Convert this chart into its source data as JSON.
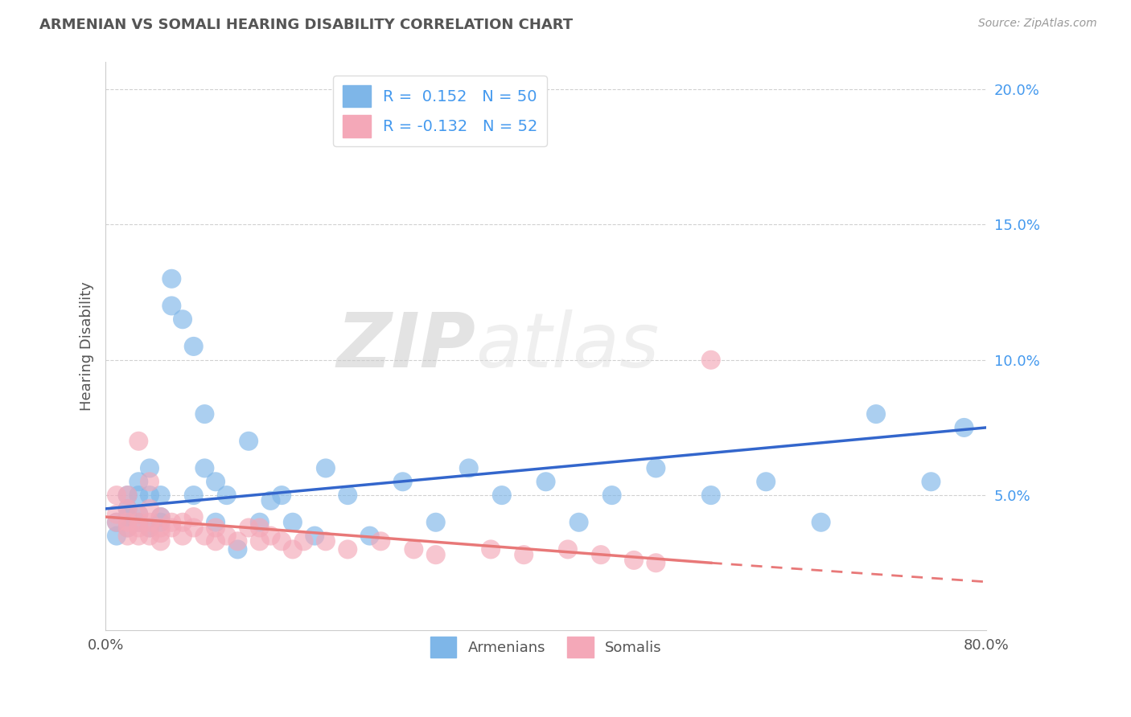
{
  "title": "ARMENIAN VS SOMALI HEARING DISABILITY CORRELATION CHART",
  "source": "Source: ZipAtlas.com",
  "ylabel": "Hearing Disability",
  "xlabel": "",
  "xmin": 0.0,
  "xmax": 0.8,
  "ymin": 0.0,
  "ymax": 0.21,
  "yticks": [
    0.05,
    0.1,
    0.15,
    0.2
  ],
  "ytick_labels": [
    "5.0%",
    "10.0%",
    "15.0%",
    "20.0%"
  ],
  "xticks": [
    0.0,
    0.8
  ],
  "xtick_labels": [
    "0.0%",
    "80.0%"
  ],
  "armenian_color": "#7EB6E8",
  "somali_color": "#F4A8B8",
  "armenian_line_color": "#3366CC",
  "somali_line_color": "#E87878",
  "armenian_R": 0.152,
  "armenian_N": 50,
  "somali_R": -0.132,
  "somali_N": 52,
  "watermark_zip": "ZIP",
  "watermark_atlas": "atlas",
  "armenian_x": [
    0.01,
    0.01,
    0.02,
    0.02,
    0.02,
    0.02,
    0.03,
    0.03,
    0.03,
    0.03,
    0.04,
    0.04,
    0.04,
    0.05,
    0.05,
    0.05,
    0.06,
    0.06,
    0.07,
    0.08,
    0.08,
    0.09,
    0.09,
    0.1,
    0.1,
    0.11,
    0.12,
    0.13,
    0.14,
    0.15,
    0.16,
    0.17,
    0.19,
    0.2,
    0.22,
    0.24,
    0.27,
    0.3,
    0.33,
    0.36,
    0.4,
    0.43,
    0.46,
    0.5,
    0.55,
    0.6,
    0.65,
    0.7,
    0.75,
    0.78
  ],
  "armenian_y": [
    0.035,
    0.04,
    0.038,
    0.042,
    0.045,
    0.05,
    0.04,
    0.043,
    0.05,
    0.055,
    0.038,
    0.05,
    0.06,
    0.04,
    0.042,
    0.05,
    0.12,
    0.13,
    0.115,
    0.105,
    0.05,
    0.08,
    0.06,
    0.04,
    0.055,
    0.05,
    0.03,
    0.07,
    0.04,
    0.048,
    0.05,
    0.04,
    0.035,
    0.06,
    0.05,
    0.035,
    0.055,
    0.04,
    0.06,
    0.05,
    0.055,
    0.04,
    0.05,
    0.06,
    0.05,
    0.055,
    0.04,
    0.08,
    0.055,
    0.075
  ],
  "somali_x": [
    0.01,
    0.01,
    0.01,
    0.02,
    0.02,
    0.02,
    0.02,
    0.02,
    0.03,
    0.03,
    0.03,
    0.03,
    0.03,
    0.04,
    0.04,
    0.04,
    0.04,
    0.04,
    0.05,
    0.05,
    0.05,
    0.05,
    0.06,
    0.06,
    0.07,
    0.07,
    0.08,
    0.08,
    0.09,
    0.1,
    0.1,
    0.11,
    0.12,
    0.13,
    0.14,
    0.14,
    0.15,
    0.16,
    0.17,
    0.18,
    0.2,
    0.22,
    0.25,
    0.28,
    0.3,
    0.35,
    0.38,
    0.42,
    0.45,
    0.48,
    0.5,
    0.55
  ],
  "somali_y": [
    0.04,
    0.043,
    0.05,
    0.035,
    0.038,
    0.04,
    0.045,
    0.05,
    0.035,
    0.038,
    0.04,
    0.043,
    0.07,
    0.035,
    0.038,
    0.04,
    0.045,
    0.055,
    0.033,
    0.036,
    0.038,
    0.042,
    0.038,
    0.04,
    0.035,
    0.04,
    0.038,
    0.042,
    0.035,
    0.033,
    0.038,
    0.035,
    0.033,
    0.038,
    0.033,
    0.038,
    0.035,
    0.033,
    0.03,
    0.033,
    0.033,
    0.03,
    0.033,
    0.03,
    0.028,
    0.03,
    0.028,
    0.03,
    0.028,
    0.026,
    0.025,
    0.1
  ]
}
